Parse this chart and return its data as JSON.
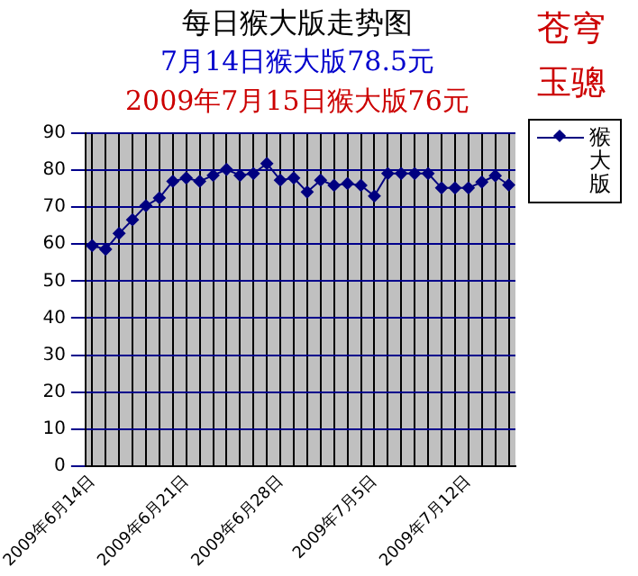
{
  "chart_data": {
    "type": "line",
    "title": "每日猴大版走势图",
    "subtitle": "7月14日猴大版78.5元",
    "annotations": [
      "2009年7月15日猴大版76元",
      "苍穹",
      "玉骢"
    ],
    "categories": [
      "2009年6月14日",
      null,
      null,
      null,
      null,
      null,
      null,
      "2009年6月21日",
      null,
      null,
      null,
      null,
      null,
      null,
      "2009年6月28日",
      null,
      null,
      null,
      null,
      null,
      null,
      "2009年7月5日",
      null,
      null,
      null,
      null,
      null,
      null,
      "2009年7月12日",
      null,
      null,
      null
    ],
    "series": [
      {
        "name": "猴大版",
        "color": "#000080",
        "values": [
          59.6,
          58.6,
          62.9,
          66.6,
          70.4,
          72.5,
          77,
          77.9,
          77,
          78.6,
          80.2,
          78.6,
          79.1,
          81.8,
          77.3,
          77.9,
          74.1,
          77.3,
          75.9,
          76.4,
          75.9,
          73,
          79.1,
          79.1,
          79.1,
          79.1,
          75.2,
          75.2,
          75.2,
          76.8,
          78.5,
          76
        ]
      }
    ],
    "ylim": [
      0,
      90
    ],
    "yticks": [
      0,
      10,
      20,
      30,
      40,
      50,
      60,
      70,
      80,
      90
    ],
    "grid": true,
    "legend": "right",
    "marker": "diamond",
    "line_style": "solid"
  }
}
